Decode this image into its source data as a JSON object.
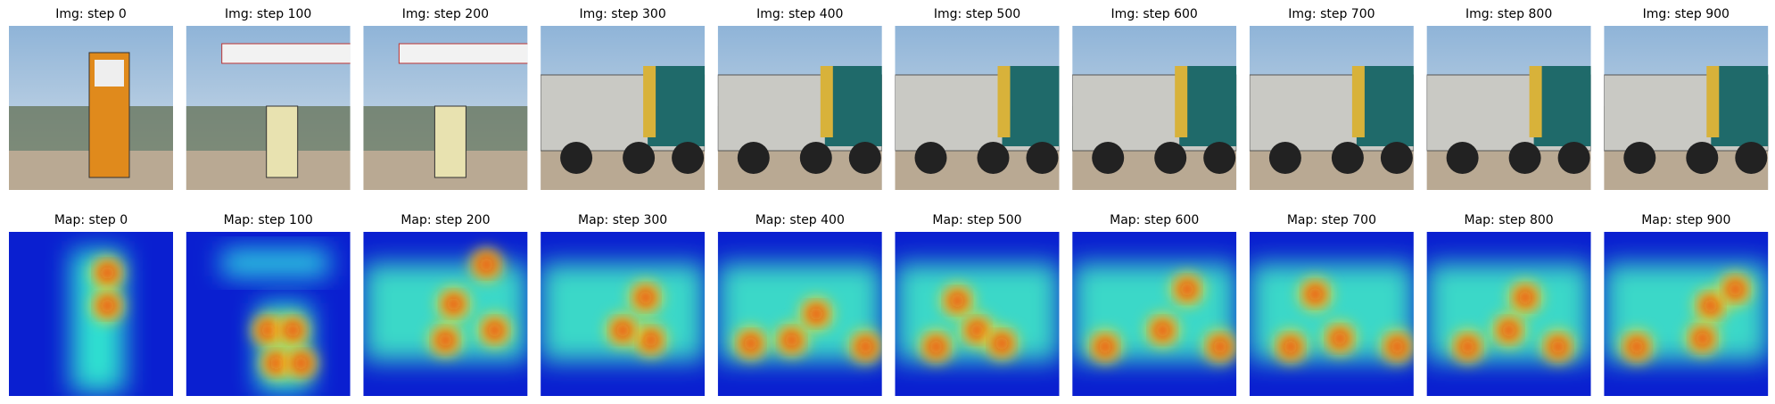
{
  "panels": [
    {
      "image_title": "Img: step 0",
      "map_title": "Map: step 0"
    },
    {
      "image_title": "Img: step 100",
      "map_title": "Map: step 100"
    },
    {
      "image_title": "Img: step 200",
      "map_title": "Map: step 200"
    },
    {
      "image_title": "Img: step 300",
      "map_title": "Map: step 300"
    },
    {
      "image_title": "Img: step 400",
      "map_title": "Map: step 400"
    },
    {
      "image_title": "Img: step 500",
      "map_title": "Map: step 500"
    },
    {
      "image_title": "Img: step 600",
      "map_title": "Map: step 600"
    },
    {
      "image_title": "Img: step 700",
      "map_title": "Map: step 700"
    },
    {
      "image_title": "Img: step 800",
      "map_title": "Map: step 800"
    },
    {
      "image_title": "Img: step 900",
      "map_title": "Map: step 900"
    }
  ]
}
